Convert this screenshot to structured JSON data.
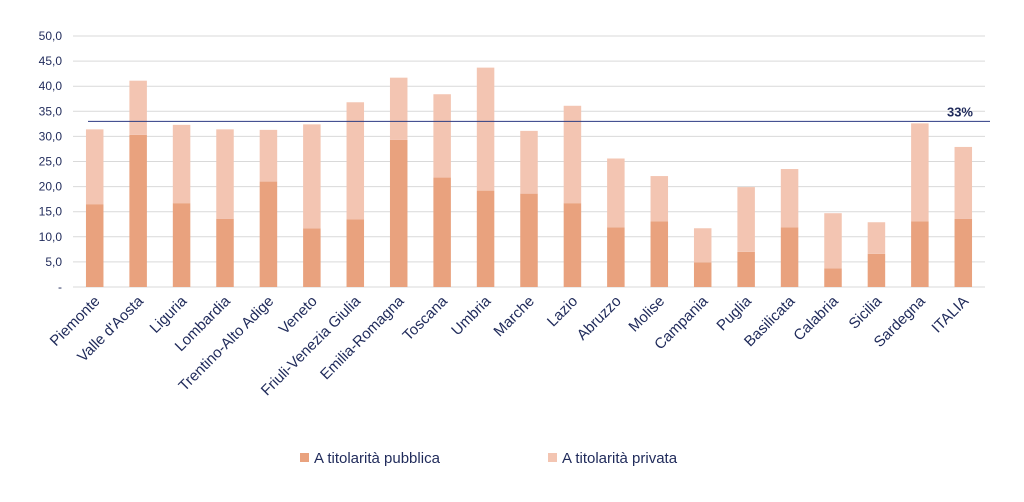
{
  "chart_data": {
    "type": "bar",
    "stacked": true,
    "categories": [
      "Piemonte",
      "Valle d'Aosta",
      "Liguria",
      "Lombardia",
      "Trentino-Alto Adige",
      "Veneto",
      "Friuli-Venezia Giulia",
      "Emilia-Romagna",
      "Toscana",
      "Umbria",
      "Marche",
      "Lazio",
      "Abruzzo",
      "Molise",
      "Campania",
      "Puglia",
      "Basilicata",
      "Calabria",
      "Sicilia",
      "Sardegna",
      "ITALIA"
    ],
    "series": [
      {
        "name": "A titolarità pubblica",
        "color": "#e9a27e",
        "values": [
          16.5,
          30.3,
          16.7,
          13.6,
          21.0,
          11.7,
          13.5,
          29.3,
          21.8,
          19.2,
          18.6,
          16.7,
          11.9,
          13.1,
          4.9,
          7.0,
          11.9,
          3.7,
          6.6,
          13.1,
          13.6
        ]
      },
      {
        "name": "A titolarità privata",
        "color": "#f3c5b2",
        "values": [
          14.9,
          10.8,
          15.6,
          17.8,
          10.3,
          20.7,
          23.3,
          12.4,
          16.6,
          24.5,
          12.5,
          19.4,
          13.7,
          9.0,
          6.8,
          12.9,
          11.6,
          11.0,
          6.3,
          19.5,
          14.3
        ]
      }
    ],
    "ylim": [
      0,
      50
    ],
    "yticks": [
      "-",
      "5,0",
      "10,0",
      "15,0",
      "20,0",
      "25,0",
      "30,0",
      "35,0",
      "40,0",
      "45,0",
      "50,0"
    ],
    "reference_line": {
      "value": 33,
      "label": "33%",
      "color": "#2b3a82"
    },
    "grid": true,
    "legend_position": "bottom"
  }
}
